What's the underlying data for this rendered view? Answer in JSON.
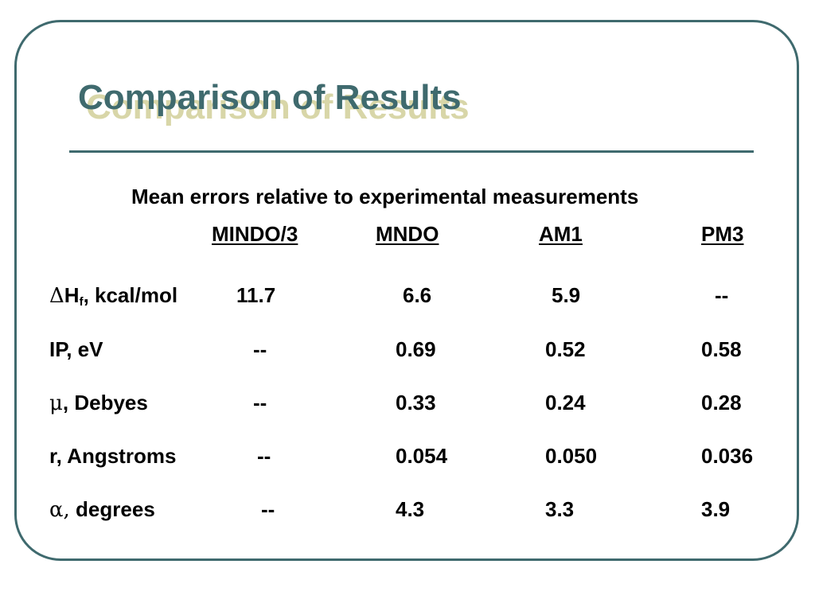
{
  "slide": {
    "title": "Comparison of Results",
    "subtitle": "Mean errors relative to experimental measurements",
    "columns": [
      "MINDO/3",
      "MNDO",
      "AM1",
      "PM3"
    ],
    "rows": [
      {
        "label_symbol": "Δ",
        "label_main": "H",
        "label_sub": "f",
        "label_rest": ", kcal/mol",
        "values": [
          "11.7",
          "6.6",
          "5.9",
          "--"
        ]
      },
      {
        "label_symbol": "",
        "label_main": "IP, eV",
        "label_sub": "",
        "label_rest": "",
        "values": [
          "--",
          "0.69",
          "0.52",
          "0.58"
        ]
      },
      {
        "label_symbol": "μ",
        "label_main": ", Debyes",
        "label_sub": "",
        "label_rest": "",
        "values": [
          "--",
          "0.33",
          "0.24",
          "0.28"
        ]
      },
      {
        "label_symbol": "",
        "label_main": "r, Angstroms",
        "label_sub": "",
        "label_rest": "",
        "values": [
          "--",
          "0.054",
          "0.050",
          "0.036"
        ]
      },
      {
        "label_symbol": "α,",
        "label_main": " degrees",
        "label_sub": "",
        "label_rest": "",
        "values": [
          "--",
          "4.3",
          "3.3",
          "3.9"
        ]
      }
    ]
  },
  "colors": {
    "accent": "#3f6a6e",
    "title_shadow": "#d8d6a8",
    "background": "#ffffff",
    "text": "#000000"
  }
}
